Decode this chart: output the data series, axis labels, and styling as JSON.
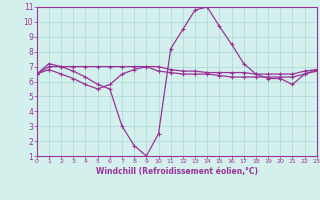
{
  "xlabel": "Windchill (Refroidissement éolien,°C)",
  "background_color": "#d4f0ec",
  "grid_color": "#a8d8d4",
  "line_color": "#993399",
  "xlim": [
    0,
    23
  ],
  "ylim": [
    1,
    11
  ],
  "xticks": [
    0,
    1,
    2,
    3,
    4,
    5,
    6,
    7,
    8,
    9,
    10,
    11,
    12,
    13,
    14,
    15,
    16,
    17,
    18,
    19,
    20,
    21,
    22,
    23
  ],
  "yticks": [
    1,
    2,
    3,
    4,
    5,
    6,
    7,
    8,
    9,
    10,
    11
  ],
  "series": [
    [
      6.5,
      7.2,
      7.0,
      6.7,
      6.3,
      5.8,
      5.5,
      3.0,
      1.7,
      1.0,
      2.5,
      8.2,
      9.5,
      10.8,
      11.0,
      9.7,
      8.5,
      7.2,
      6.5,
      6.2,
      6.2,
      5.8,
      6.5,
      6.8
    ],
    [
      6.5,
      7.0,
      7.0,
      7.0,
      7.0,
      7.0,
      7.0,
      7.0,
      7.0,
      7.0,
      7.0,
      6.8,
      6.7,
      6.7,
      6.6,
      6.6,
      6.6,
      6.6,
      6.5,
      6.5,
      6.5,
      6.5,
      6.7,
      6.8
    ],
    [
      6.5,
      6.8,
      6.5,
      6.2,
      5.8,
      5.5,
      5.8,
      6.5,
      6.8,
      7.0,
      6.7,
      6.6,
      6.5,
      6.5,
      6.5,
      6.4,
      6.3,
      6.3,
      6.3,
      6.3,
      6.3,
      6.3,
      6.5,
      6.7
    ]
  ]
}
